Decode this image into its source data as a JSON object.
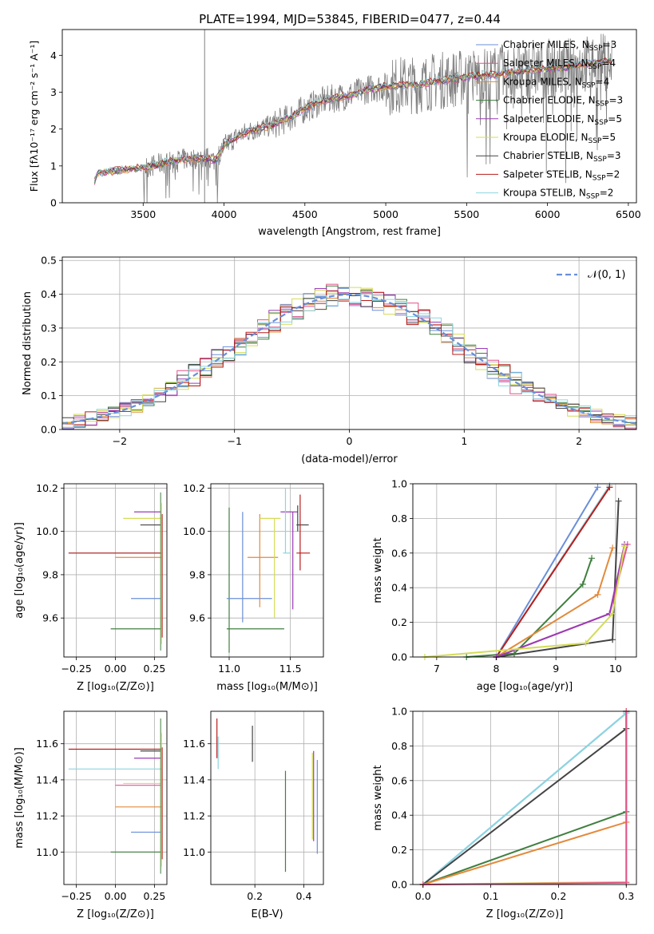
{
  "figure_title": "PLATE=1994, MJD=53845, FIBERID=0477, z=0.44",
  "colors": {
    "chabrier_miles": "#6a8fd9",
    "salpeter_miles": "#e2528c",
    "kroupa_miles": "#e38a3b",
    "chabrier_elodie": "#3f7f3f",
    "salpeter_elodie": "#9a3bb5",
    "kroupa_elodie": "#d4dc56",
    "chabrier_stelib": "#444444",
    "salpeter_stelib": "#b81c1c",
    "kroupa_stelib": "#8ad6e0",
    "data": "#808080",
    "normal": "#6a8fd9"
  },
  "chart_data": [
    {
      "type": "line",
      "panel": "spectrum",
      "title": "PLATE=1994, MJD=53845, FIBERID=0477, z=0.44",
      "xlabel": "wavelength [Angstrom, rest frame]",
      "ylabel": "Flux [f_λ 10^-17 erg cm^-2 s^-1 A^-1]",
      "xlim": [
        3000,
        6550
      ],
      "ylim": [
        0,
        4.7
      ],
      "xticks": [
        3500,
        4000,
        4500,
        5000,
        5500,
        6000,
        6500
      ],
      "yticks": [
        0,
        1,
        2,
        3,
        4
      ],
      "legend_position": "upper right",
      "legend": [
        {
          "label": "Chabrier MILES, N",
          "sub": "SSP",
          "tail": "=3",
          "color": "#6a8fd9"
        },
        {
          "label": "Salpeter MILES, N",
          "sub": "SSP",
          "tail": "=4",
          "color": "#e2528c"
        },
        {
          "label": "Kroupa MILES, N",
          "sub": "SSP",
          "tail": "=4",
          "color": "#e38a3b"
        },
        {
          "label": "Chabrier ELODIE, N",
          "sub": "SSP",
          "tail": "=3",
          "color": "#3f7f3f"
        },
        {
          "label": "Salpeter ELODIE, N",
          "sub": "SSP",
          "tail": "=5",
          "color": "#9a3bb5"
        },
        {
          "label": "Kroupa ELODIE, N",
          "sub": "SSP",
          "tail": "=5",
          "color": "#d4dc56"
        },
        {
          "label": "Chabrier STELIB, N",
          "sub": "SSP",
          "tail": "=3",
          "color": "#444444"
        },
        {
          "label": "Salpeter STELIB, N",
          "sub": "SSP",
          "tail": "=2",
          "color": "#b81c1c"
        },
        {
          "label": "Kroupa STELIB, N",
          "sub": "SSP",
          "tail": "=2",
          "color": "#8ad6e0"
        }
      ],
      "continuum": [
        [
          3200,
          0.6
        ],
        [
          3220,
          0.8
        ],
        [
          3300,
          0.85
        ],
        [
          3400,
          0.9
        ],
        [
          3500,
          0.95
        ],
        [
          3600,
          1.05
        ],
        [
          3700,
          1.15
        ],
        [
          3800,
          1.2
        ],
        [
          3900,
          1.2
        ],
        [
          3950,
          1.15
        ],
        [
          4000,
          1.55
        ],
        [
          4100,
          1.85
        ],
        [
          4200,
          2.0
        ],
        [
          4300,
          2.1
        ],
        [
          4400,
          2.3
        ],
        [
          4500,
          2.55
        ],
        [
          4600,
          2.75
        ],
        [
          4700,
          2.85
        ],
        [
          4800,
          2.95
        ],
        [
          4900,
          3.1
        ],
        [
          5000,
          3.15
        ],
        [
          5100,
          3.2
        ],
        [
          5200,
          3.2
        ],
        [
          5300,
          3.3
        ],
        [
          5400,
          3.35
        ],
        [
          5500,
          3.4
        ],
        [
          5600,
          3.45
        ],
        [
          5700,
          3.5
        ],
        [
          5800,
          3.55
        ],
        [
          5900,
          3.6
        ],
        [
          6000,
          3.65
        ],
        [
          6100,
          3.65
        ],
        [
          6200,
          3.75
        ],
        [
          6300,
          3.8
        ],
        [
          6400,
          3.85
        ]
      ]
    },
    {
      "type": "line",
      "panel": "residual_histogram",
      "xlabel": "(data-model)/error",
      "ylabel": "Normed distribution",
      "xlim": [
        -2.5,
        2.5
      ],
      "ylim": [
        0,
        0.51
      ],
      "xticks": [
        -2,
        -1,
        0,
        1,
        2
      ],
      "yticks": [
        0.0,
        0.1,
        0.2,
        0.3,
        0.4,
        0.5
      ],
      "legend": [
        {
          "label": "𝒩(0, 1)",
          "style": "dashed",
          "color": "#6a8fd9"
        }
      ],
      "legend_position": "upper right"
    },
    {
      "type": "scatter",
      "panel": "age_vs_Z",
      "xlabel": "Z [log10(Z/Z⊙)]",
      "ylabel": "age [log10(age/yr)]",
      "xlim": [
        -0.33,
        0.33
      ],
      "ylim": [
        9.42,
        10.22
      ],
      "xticks": [
        -0.25,
        0.0,
        0.25
      ],
      "yticks": [
        9.6,
        9.8,
        10.0,
        10.2
      ],
      "points": [
        {
          "series": "salpeter_elodie",
          "xlo": 0.12,
          "xhi": 0.29,
          "y": 10.09
        },
        {
          "series": "kroupa_elodie",
          "xlo": 0.05,
          "xhi": 0.29,
          "y": 10.06
        },
        {
          "series": "chabrier_stelib",
          "xlo": 0.16,
          "xhi": 0.29,
          "y": 10.03
        },
        {
          "series": "kroupa_stelib",
          "xlo": -0.3,
          "xhi": 0.3,
          "y": 9.9
        },
        {
          "series": "salpeter_stelib",
          "xlo": -0.3,
          "xhi": 0.3,
          "y": 9.9
        },
        {
          "series": "kroupa_miles",
          "xlo": 0.0,
          "xhi": 0.3,
          "y": 9.88
        },
        {
          "series": "chabrier_miles",
          "xlo": 0.1,
          "xhi": 0.29,
          "y": 9.69
        },
        {
          "series": "chabrier_elodie",
          "xlo": -0.03,
          "xhi": 0.29,
          "y": 9.55
        }
      ]
    },
    {
      "type": "scatter",
      "panel": "age_vs_mass",
      "xlabel": "mass [log10(M/M⊙)]",
      "ylabel": "",
      "xlim": [
        10.85,
        11.77
      ],
      "ylim": [
        9.42,
        10.22
      ],
      "xticks": [
        11.0,
        11.5
      ],
      "yticks": [
        9.6,
        9.8,
        10.0,
        10.2
      ],
      "points": [
        {
          "series": "chabrier_elodie",
          "x": 11.0,
          "ylo": 9.44,
          "yhi": 10.11,
          "xlo": 10.98,
          "xhi": 11.45,
          "y": 9.55
        },
        {
          "series": "chabrier_miles",
          "x": 11.11,
          "ylo": 9.58,
          "yhi": 10.09,
          "xlo": 10.98,
          "xhi": 11.35,
          "y": 9.69
        },
        {
          "series": "kroupa_miles",
          "x": 11.25,
          "ylo": 9.65,
          "yhi": 10.08,
          "xlo": 11.15,
          "xhi": 11.4,
          "y": 9.88
        },
        {
          "series": "kroupa_elodie",
          "x": 11.37,
          "ylo": 9.6,
          "yhi": 10.06,
          "xlo": 11.25,
          "xhi": 11.42,
          "y": 10.06
        },
        {
          "series": "salpeter_elodie",
          "x": 11.52,
          "ylo": 9.64,
          "yhi": 10.09,
          "xlo": 11.42,
          "xhi": 11.56,
          "y": 10.09
        },
        {
          "series": "kroupa_stelib",
          "x": 11.46,
          "ylo": 9.9,
          "yhi": 10.2,
          "xlo": 11.44,
          "xhi": 11.5,
          "y": 9.9
        },
        {
          "series": "chabrier_stelib",
          "x": 11.56,
          "ylo": 10.0,
          "yhi": 10.12,
          "xlo": 11.55,
          "xhi": 11.65,
          "y": 10.03
        },
        {
          "series": "salpeter_stelib",
          "x": 11.58,
          "ylo": 9.82,
          "yhi": 10.17,
          "xlo": 11.55,
          "xhi": 11.66,
          "y": 9.9
        }
      ]
    },
    {
      "type": "line",
      "panel": "cumulative_mass_weight_vs_age",
      "xlabel": "age [log10(age/yr)]",
      "ylabel": "mass weight",
      "xlim": [
        6.6,
        10.35
      ],
      "ylim": [
        0,
        1.0
      ],
      "xticks": [
        7,
        8,
        9,
        10
      ],
      "yticks": [
        0.0,
        0.2,
        0.4,
        0.6,
        0.8,
        1.0
      ],
      "series": [
        {
          "name": "chabrier_miles",
          "x": [
            8.0,
            9.7
          ],
          "y": [
            0.0,
            0.98
          ]
        },
        {
          "name": "kroupa_stelib",
          "x": [
            8.0,
            9.9
          ],
          "y": [
            0.0,
            0.99
          ]
        },
        {
          "name": "salpeter_stelib",
          "x": [
            8.0,
            9.9
          ],
          "y": [
            0.0,
            0.98
          ]
        },
        {
          "name": "chabrier_stelib",
          "x": [
            8.0,
            9.95,
            10.05
          ],
          "y": [
            0.0,
            0.1,
            0.9
          ]
        },
        {
          "name": "chabrier_elodie",
          "x": [
            7.5,
            8.3,
            9.45,
            9.6
          ],
          "y": [
            0.0,
            0.02,
            0.42,
            0.57
          ]
        },
        {
          "name": "kroupa_miles",
          "x": [
            8.0,
            9.7,
            9.95
          ],
          "y": [
            0.0,
            0.36,
            0.63
          ]
        },
        {
          "name": "salpeter_miles",
          "x": [
            8.0,
            9.9,
            10.2
          ],
          "y": [
            0.0,
            0.25,
            0.65
          ]
        },
        {
          "name": "salpeter_elodie",
          "x": [
            8.0,
            9.9,
            10.15
          ],
          "y": [
            0.0,
            0.25,
            0.65
          ]
        },
        {
          "name": "kroupa_elodie",
          "x": [
            6.8,
            9.5,
            9.95,
            10.15
          ],
          "y": [
            0.0,
            0.08,
            0.25,
            0.64
          ]
        }
      ]
    },
    {
      "type": "scatter",
      "panel": "mass_vs_Z",
      "xlabel": "Z [log10(Z/Z⊙)]",
      "ylabel": "mass [log10(M/M⊙)]",
      "xlim": [
        -0.33,
        0.33
      ],
      "ylim": [
        10.82,
        11.78
      ],
      "xticks": [
        -0.25,
        0.0,
        0.25
      ],
      "yticks": [
        11.0,
        11.2,
        11.4,
        11.6
      ],
      "points": [
        {
          "series": "salpeter_stelib",
          "xlo": -0.3,
          "xhi": 0.3,
          "y": 11.57
        },
        {
          "series": "chabrier_stelib",
          "xlo": 0.16,
          "xhi": 0.29,
          "y": 11.56
        },
        {
          "series": "salpeter_elodie",
          "xlo": 0.12,
          "xhi": 0.29,
          "y": 11.52
        },
        {
          "series": "kroupa_stelib",
          "xlo": -0.3,
          "xhi": 0.3,
          "y": 11.46
        },
        {
          "series": "kroupa_elodie",
          "xlo": 0.05,
          "xhi": 0.29,
          "y": 11.38
        },
        {
          "series": "salpeter_miles",
          "xlo": 0.0,
          "xhi": 0.29,
          "y": 11.37
        },
        {
          "series": "kroupa_miles",
          "xlo": 0.0,
          "xhi": 0.3,
          "y": 11.25
        },
        {
          "series": "chabrier_miles",
          "xlo": 0.1,
          "xhi": 0.29,
          "y": 11.11
        },
        {
          "series": "chabrier_elodie",
          "xlo": -0.03,
          "xhi": 0.29,
          "y": 11.0
        }
      ]
    },
    {
      "type": "scatter",
      "panel": "mass_vs_ebv",
      "xlabel": "E(B-V)",
      "ylabel": "",
      "xlim": [
        0.02,
        0.48
      ],
      "ylim": [
        10.82,
        11.78
      ],
      "xticks": [
        0.2,
        0.4
      ],
      "yticks": [
        11.0,
        11.2,
        11.4,
        11.6
      ],
      "points": [
        {
          "series": "salpeter_stelib",
          "x": 0.045,
          "ylo": 11.52,
          "yhi": 11.74
        },
        {
          "series": "kroupa_stelib",
          "x": 0.05,
          "ylo": 11.46,
          "yhi": 11.64
        },
        {
          "series": "chabrier_stelib",
          "x": 0.19,
          "ylo": 11.5,
          "yhi": 11.7
        },
        {
          "series": "chabrier_elodie",
          "x": 0.325,
          "ylo": 10.89,
          "yhi": 11.45
        },
        {
          "series": "kroupa_elodie",
          "x": 0.435,
          "ylo": 11.07,
          "yhi": 11.55
        },
        {
          "series": "salpeter_elodie",
          "x": 0.44,
          "ylo": 11.06,
          "yhi": 11.56
        },
        {
          "series": "chabrier_miles",
          "x": 0.455,
          "ylo": 10.99,
          "yhi": 11.51
        }
      ]
    },
    {
      "type": "line",
      "panel": "cumulative_mass_weight_vs_Z",
      "xlabel": "Z [log10(Z/Z⊙)]",
      "ylabel": "mass weight",
      "xlim": [
        -0.015,
        0.315
      ],
      "ylim": [
        0,
        1.0
      ],
      "xticks": [
        0.0,
        0.1,
        0.2,
        0.3
      ],
      "yticks": [
        0.0,
        0.2,
        0.4,
        0.6,
        0.8,
        1.0
      ],
      "series": [
        {
          "name": "chabrier_miles",
          "x": [
            0.0,
            0.3
          ],
          "y": [
            0.0,
            0.99
          ]
        },
        {
          "name": "kroupa_stelib",
          "x": [
            0.0,
            0.3
          ],
          "y": [
            0.0,
            0.99
          ]
        },
        {
          "name": "chabrier_stelib",
          "x": [
            0.0,
            0.3,
            0.3
          ],
          "y": [
            0.0,
            0.9,
            1.0
          ]
        },
        {
          "name": "chabrier_elodie",
          "x": [
            0.0,
            0.3,
            0.3
          ],
          "y": [
            0.0,
            0.42,
            1.0
          ]
        },
        {
          "name": "kroupa_miles",
          "x": [
            0.0,
            0.3,
            0.3
          ],
          "y": [
            0.0,
            0.36,
            1.0
          ]
        },
        {
          "name": "kroupa_elodie",
          "x": [
            0.0,
            0.3,
            0.3
          ],
          "y": [
            0.0,
            0.015,
            1.0
          ]
        },
        {
          "name": "salpeter_miles",
          "x": [
            0.0,
            0.3,
            0.3
          ],
          "y": [
            0.0,
            0.01,
            1.0
          ]
        }
      ]
    }
  ]
}
